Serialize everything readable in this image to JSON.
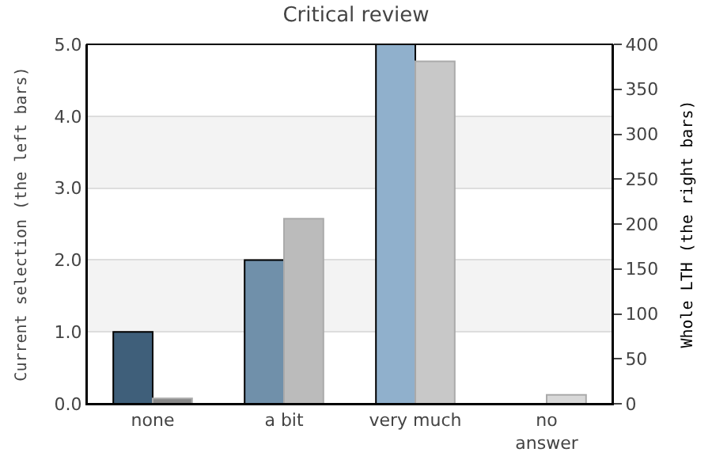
{
  "chart_data": {
    "type": "bar",
    "title": "Critical review",
    "categories": [
      "none",
      "a bit",
      "very much",
      "no\nanswer"
    ],
    "ylabel": "Current selection (the left bars)",
    "y2label": "Whole LTH (the right bars)",
    "series": [
      {
        "values": [
          1.0,
          2.0,
          5.0,
          0
        ],
        "colors": [
          "#3f5f7a",
          "#7090aa",
          "#90b0cc",
          "#90b0cc"
        ]
      },
      {
        "values": [
          6,
          206,
          381,
          10
        ],
        "colors": [
          "#888888",
          "#bbbbbb",
          "#c8c8c8",
          "#d8d8d8"
        ],
        "axis": "y2"
      }
    ],
    "ylim": [
      0,
      5
    ],
    "yticks": [
      {
        "value": 0,
        "label": "0.0"
      },
      {
        "value": 1,
        "label": "1.0"
      },
      {
        "value": 2,
        "label": "2.0"
      },
      {
        "value": 3,
        "label": "3.0"
      },
      {
        "value": 4,
        "label": "4.0"
      },
      {
        "value": 5,
        "label": "5.0"
      }
    ],
    "y2lim": [
      0,
      400
    ],
    "y2ticks": [
      0,
      50,
      100,
      150,
      200,
      250,
      300,
      350,
      400
    ],
    "bands": [
      {
        "axis": "y",
        "from": 1,
        "to": 2,
        "color": "#f3f3f3"
      },
      {
        "axis": "y",
        "from": 3,
        "to": 4,
        "color": "#f3f3f3"
      }
    ],
    "grid": "y"
  }
}
